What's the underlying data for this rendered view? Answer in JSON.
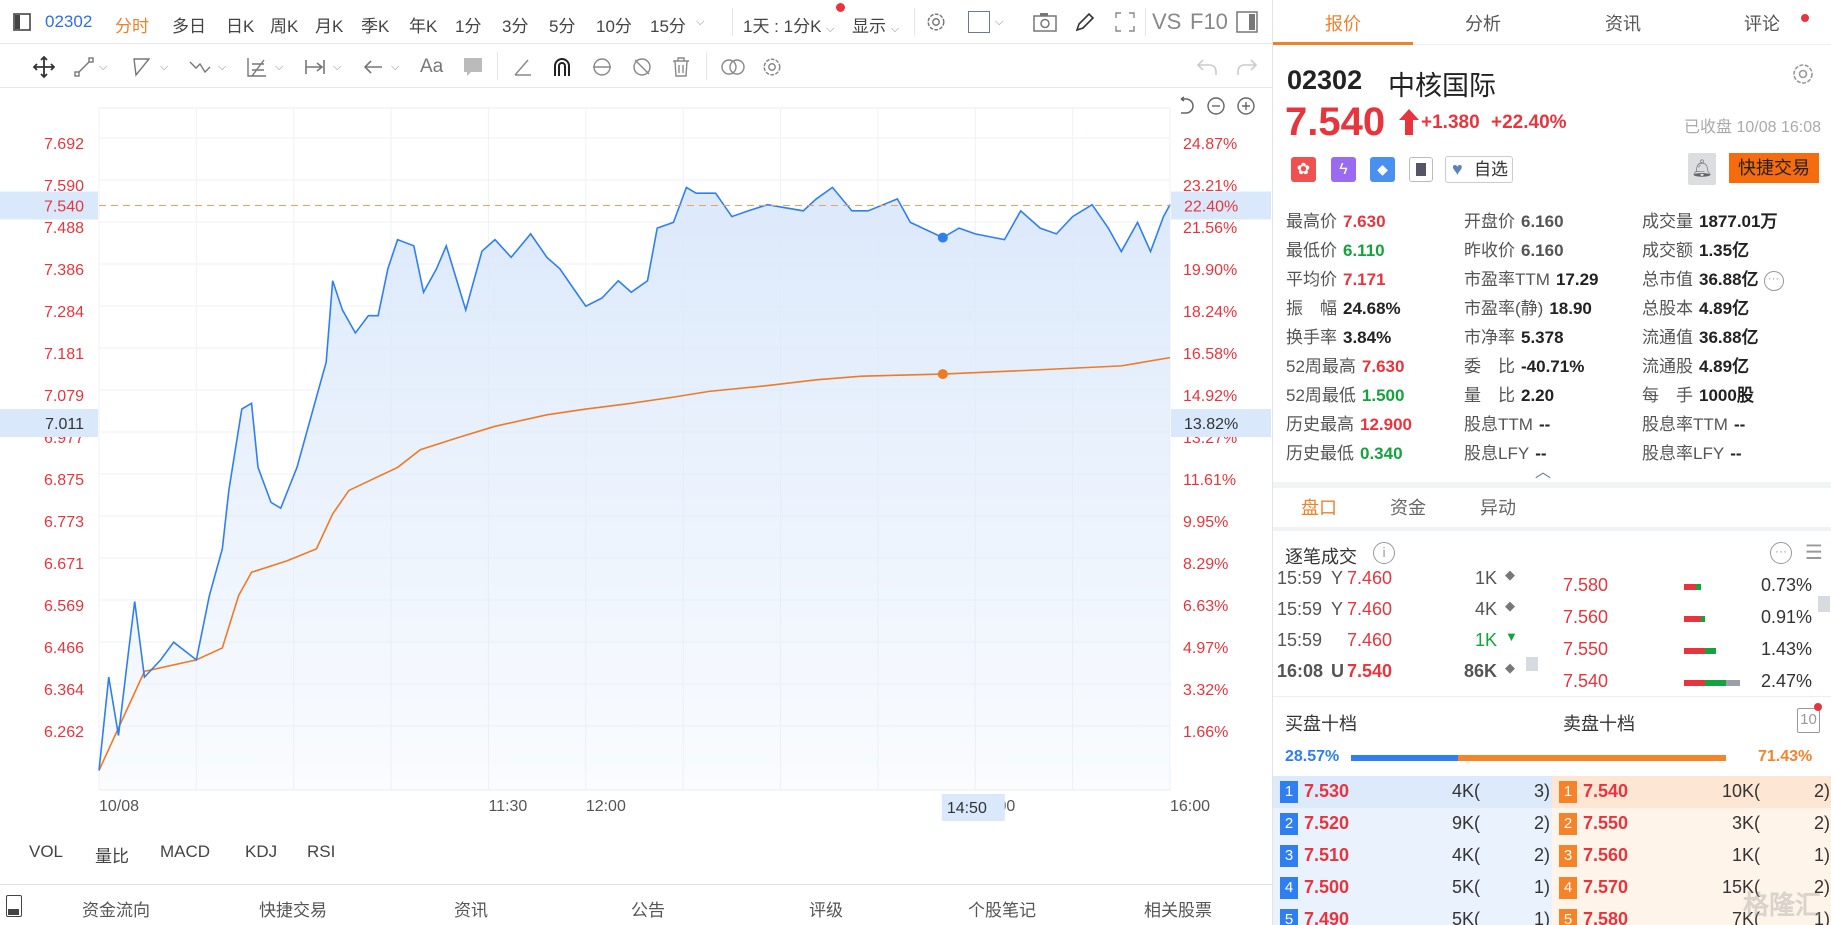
{
  "toolbar": {
    "stock_code": "02302",
    "periods": [
      "分时",
      "多日",
      "日K",
      "周K",
      "月K",
      "季K",
      "年K",
      "1分",
      "3分",
      "5分",
      "10分",
      "15分"
    ],
    "active_period": "分时",
    "range_select": "1天 : 1分K",
    "display_select": "显示",
    "vs": "VS",
    "f10": "F10",
    "font_tool": "Aa"
  },
  "chart": {
    "left_ticks": [
      "7.692",
      "7.590",
      "7.488",
      "7.386",
      "7.284",
      "7.181",
      "7.079",
      "6.977",
      "6.875",
      "6.773",
      "6.671",
      "6.569",
      "6.466",
      "6.364",
      "6.262"
    ],
    "right_ticks": [
      "24.87%",
      "23.21%",
      "21.56%",
      "19.90%",
      "18.24%",
      "16.58%",
      "14.92%",
      "13.27%",
      "11.61%",
      "9.95%",
      "8.29%",
      "6.63%",
      "4.97%",
      "3.32%",
      "1.66%"
    ],
    "current_price_label": "7.540",
    "current_pct_label": "22.40%",
    "crosshair": {
      "price": "7.011",
      "pct": "13.82%",
      "time": "14:50"
    },
    "x_labels": [
      {
        "time": "09:30",
        "label": "10/08"
      },
      {
        "time": "11:30",
        "label": "11:30"
      },
      {
        "time": "13:00",
        "label": "12:00"
      },
      {
        "time": "15:00",
        "label": "15:00"
      },
      {
        "time": "16:00",
        "label": "16:00"
      }
    ]
  },
  "indicators": [
    "VOL",
    "量比",
    "MACD",
    "KDJ",
    "RSI"
  ],
  "bottom_bar": [
    "资金流向",
    "快捷交易",
    "资讯",
    "公告",
    "评级",
    "个股笔记",
    "相关股票"
  ],
  "chart_data": {
    "type": "line",
    "ylim": [
      6.11,
      7.692
    ],
    "reference_price": 7.54,
    "colors": {
      "price": "#2f7ff0",
      "average": "#f07a24",
      "fill": "#dce9fb"
    },
    "series": [
      {
        "key": "price",
        "points": [
          [
            "09:30",
            6.166
          ],
          [
            "09:33",
            6.393
          ],
          [
            "09:36",
            6.251
          ],
          [
            "09:39",
            6.449
          ],
          [
            "09:41",
            6.577
          ],
          [
            "09:44",
            6.393
          ],
          [
            "09:49",
            6.435
          ],
          [
            "09:53",
            6.478
          ],
          [
            "10:00",
            6.435
          ],
          [
            "10:04",
            6.591
          ],
          [
            "10:08",
            6.705
          ],
          [
            "10:10",
            6.847
          ],
          [
            "10:14",
            7.045
          ],
          [
            "10:17",
            7.059
          ],
          [
            "10:19",
            6.903
          ],
          [
            "10:23",
            6.818
          ],
          [
            "10:26",
            6.804
          ],
          [
            "10:31",
            6.903
          ],
          [
            "10:37",
            7.074
          ],
          [
            "10:40",
            7.159
          ],
          [
            "10:42",
            7.357
          ],
          [
            "10:45",
            7.286
          ],
          [
            "10:49",
            7.23
          ],
          [
            "10:53",
            7.272
          ],
          [
            "10:56",
            7.272
          ],
          [
            "10:59",
            7.386
          ],
          [
            "11:02",
            7.457
          ],
          [
            "11:07",
            7.442
          ],
          [
            "11:10",
            7.329
          ],
          [
            "11:14",
            7.386
          ],
          [
            "11:17",
            7.442
          ],
          [
            "11:23",
            7.286
          ],
          [
            "11:28",
            7.429
          ],
          [
            "11:32",
            7.457
          ],
          [
            "11:37",
            7.414
          ],
          [
            "11:43",
            7.471
          ],
          [
            "11:48",
            7.414
          ],
          [
            "11:52",
            7.386
          ],
          [
            "11:57",
            7.329
          ],
          [
            "12:00",
            7.295
          ],
          [
            "13:05",
            7.315
          ],
          [
            "13:10",
            7.357
          ],
          [
            "13:14",
            7.329
          ],
          [
            "13:19",
            7.357
          ],
          [
            "13:22",
            7.485
          ],
          [
            "13:27",
            7.499
          ],
          [
            "13:31",
            7.584
          ],
          [
            "13:34",
            7.57
          ],
          [
            "13:40",
            7.57
          ],
          [
            "13:45",
            7.513
          ],
          [
            "13:50",
            7.527
          ],
          [
            "13:56",
            7.542
          ],
          [
            "14:07",
            7.527
          ],
          [
            "14:11",
            7.556
          ],
          [
            "14:16",
            7.584
          ],
          [
            "14:22",
            7.527
          ],
          [
            "14:27",
            7.527
          ],
          [
            "14:36",
            7.556
          ],
          [
            "14:40",
            7.499
          ],
          [
            "14:50",
            7.462
          ],
          [
            "14:55",
            7.485
          ],
          [
            "15:00",
            7.471
          ],
          [
            "15:09",
            7.457
          ],
          [
            "15:14",
            7.527
          ],
          [
            "15:20",
            7.485
          ],
          [
            "15:25",
            7.471
          ],
          [
            "15:30",
            7.513
          ],
          [
            "15:36",
            7.542
          ],
          [
            "15:41",
            7.485
          ],
          [
            "15:45",
            7.428
          ],
          [
            "15:50",
            7.499
          ],
          [
            "15:54",
            7.428
          ],
          [
            "15:58",
            7.513
          ],
          [
            "16:00",
            7.542
          ]
        ]
      },
      {
        "key": "average",
        "points": [
          [
            "09:30",
            6.166
          ],
          [
            "09:44",
            6.407
          ],
          [
            "10:00",
            6.435
          ],
          [
            "10:08",
            6.464
          ],
          [
            "10:13",
            6.591
          ],
          [
            "10:17",
            6.648
          ],
          [
            "10:28",
            6.676
          ],
          [
            "10:37",
            6.705
          ],
          [
            "10:42",
            6.79
          ],
          [
            "10:47",
            6.847
          ],
          [
            "11:02",
            6.903
          ],
          [
            "11:09",
            6.946
          ],
          [
            "11:20",
            6.974
          ],
          [
            "11:32",
            7.003
          ],
          [
            "11:48",
            7.031
          ],
          [
            "12:00",
            7.045
          ],
          [
            "13:14",
            7.059
          ],
          [
            "13:27",
            7.074
          ],
          [
            "13:38",
            7.088
          ],
          [
            "13:56",
            7.102
          ],
          [
            "14:11",
            7.116
          ],
          [
            "14:25",
            7.125
          ],
          [
            "14:50",
            7.13
          ],
          [
            "15:16",
            7.139
          ],
          [
            "15:45",
            7.15
          ],
          [
            "16:00",
            7.17
          ]
        ]
      }
    ],
    "markers": [
      {
        "series": "price",
        "time": "14:50",
        "value": 7.462
      },
      {
        "series": "average",
        "time": "14:50",
        "value": 7.13
      }
    ]
  },
  "panel": {
    "tabs": [
      "报价",
      "分析",
      "资讯",
      "评论"
    ],
    "code": "02302",
    "name": "中核国际",
    "price": "7.540",
    "change": "+1.380",
    "change_pct": "+22.40%",
    "status": "已收盘 10/08 16:08",
    "watch_label": "自选",
    "trade_label": "快捷交易",
    "stats": [
      [
        {
          "k": "最高价",
          "v": "7.630",
          "c": "red"
        },
        {
          "k": "开盘价",
          "v": "6.160",
          "c": "gray"
        },
        {
          "k": "成交量",
          "v": "1877.01万",
          "c": "dark"
        }
      ],
      [
        {
          "k": "最低价",
          "v": "6.110",
          "c": "green"
        },
        {
          "k": "昨收价",
          "v": "6.160",
          "c": "gray"
        },
        {
          "k": "成交额",
          "v": "1.35亿",
          "c": "dark"
        }
      ],
      [
        {
          "k": "平均价",
          "v": "7.171",
          "c": "red"
        },
        {
          "k": "市盈率TTM",
          "v": "17.29",
          "c": "dark"
        },
        {
          "k": "总市值",
          "v": "36.88亿",
          "c": "dark"
        }
      ],
      [
        {
          "k": "振　幅",
          "v": "24.68%",
          "c": "dark"
        },
        {
          "k": "市盈率(静)",
          "v": "18.90",
          "c": "dark"
        },
        {
          "k": "总股本",
          "v": "4.89亿",
          "c": "dark"
        }
      ],
      [
        {
          "k": "换手率",
          "v": "3.84%",
          "c": "dark"
        },
        {
          "k": "市净率",
          "v": "5.378",
          "c": "dark"
        },
        {
          "k": "流通值",
          "v": "36.88亿",
          "c": "dark"
        }
      ],
      [
        {
          "k": "52周最高",
          "v": "7.630",
          "c": "red"
        },
        {
          "k": "委　比",
          "v": "-40.71%",
          "c": "dark"
        },
        {
          "k": "流通股",
          "v": "4.89亿",
          "c": "dark"
        }
      ],
      [
        {
          "k": "52周最低",
          "v": "1.500",
          "c": "green"
        },
        {
          "k": "量　比",
          "v": "2.20",
          "c": "dark"
        },
        {
          "k": "每　手",
          "v": "1000股",
          "c": "dark"
        }
      ],
      [
        {
          "k": "历史最高",
          "v": "12.900",
          "c": "red"
        },
        {
          "k": "股息TTM",
          "v": "--",
          "c": "dark"
        },
        {
          "k": "股息率TTM",
          "v": "--",
          "c": "dark"
        }
      ],
      [
        {
          "k": "历史最低",
          "v": "0.340",
          "c": "green"
        },
        {
          "k": "股息LFY",
          "v": "--",
          "c": "dark"
        },
        {
          "k": "股息率LFY",
          "v": "--",
          "c": "dark"
        }
      ]
    ],
    "subtabs": [
      "盘口",
      "资金",
      "异动"
    ],
    "ticks_title": "逐笔成交",
    "ticks": [
      {
        "time": "15:59",
        "flag": "Y",
        "price": "7.460",
        "vol": "1K",
        "dir": "neutral"
      },
      {
        "time": "15:59",
        "flag": "Y",
        "price": "7.460",
        "vol": "4K",
        "dir": "neutral"
      },
      {
        "time": "15:59",
        "flag": "",
        "price": "7.460",
        "vol": "1K",
        "dir": "down"
      },
      {
        "time": "16:08",
        "flag": "U",
        "price": "7.540",
        "vol": "86K",
        "dir": "neutral"
      }
    ],
    "levels": [
      {
        "price": "7.580",
        "pct": "0.73%",
        "red": 0.7,
        "green": 0.3,
        "gray": 0
      },
      {
        "price": "7.560",
        "pct": "0.91%",
        "red": 0.8,
        "green": 0.2,
        "gray": 0
      },
      {
        "price": "7.550",
        "pct": "1.43%",
        "red": 0.65,
        "green": 0.35,
        "gray": 0
      },
      {
        "price": "7.540",
        "pct": "2.47%",
        "red": 0.37,
        "green": 0.38,
        "gray": 0.25
      }
    ],
    "buy_title": "买盘十档",
    "sell_title": "卖盘十档",
    "ten_label": "10",
    "buy_ratio": "28.57%",
    "sell_ratio": "71.43%",
    "buy_ratio_value": 28.57,
    "buys": [
      {
        "n": "1",
        "p": "7.530",
        "v": "4K(",
        "c": "3)"
      },
      {
        "n": "2",
        "p": "7.520",
        "v": "9K(",
        "c": "2)"
      },
      {
        "n": "3",
        "p": "7.510",
        "v": "4K(",
        "c": "2)"
      },
      {
        "n": "4",
        "p": "7.500",
        "v": "5K(",
        "c": "1)"
      },
      {
        "n": "5",
        "p": "7.490",
        "v": "5K(",
        "c": "1)"
      }
    ],
    "sells": [
      {
        "n": "1",
        "p": "7.540",
        "v": "10K(",
        "c": "2)"
      },
      {
        "n": "2",
        "p": "7.550",
        "v": "3K(",
        "c": "2)"
      },
      {
        "n": "3",
        "p": "7.560",
        "v": "1K(",
        "c": "1)"
      },
      {
        "n": "4",
        "p": "7.570",
        "v": "15K(",
        "c": "2)"
      },
      {
        "n": "5",
        "p": "7.580",
        "v": "7K(",
        "c": "1)"
      }
    ],
    "watermark": "格隆汇"
  }
}
